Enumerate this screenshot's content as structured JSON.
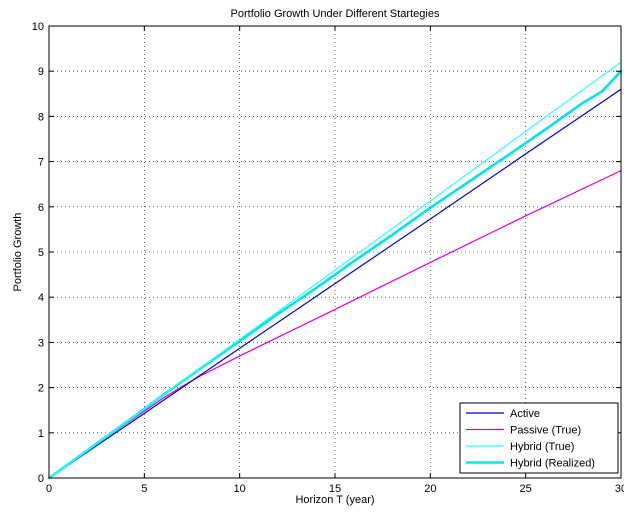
{
  "chart_data": {
    "type": "line",
    "title": "Portfolio Growth Under Different Startegies",
    "xlabel": "Horizon T (year)",
    "ylabel": "Portfolio Growth",
    "xlim": [
      0,
      30
    ],
    "ylim": [
      0,
      10
    ],
    "xticks": [
      0,
      5,
      10,
      15,
      20,
      25,
      30
    ],
    "yticks": [
      0,
      1,
      2,
      3,
      4,
      5,
      6,
      7,
      8,
      9,
      10
    ],
    "grid": true,
    "legend_position": "bottom-right",
    "series": [
      {
        "name": "Active",
        "color": "#0000cc",
        "x": [
          0,
          5,
          10,
          15,
          20,
          25,
          30
        ],
        "y": [
          0,
          1.43,
          2.87,
          4.3,
          5.73,
          7.17,
          8.6
        ]
      },
      {
        "name": "Passive (True)",
        "color": "#dd00dd",
        "x": [
          0,
          2,
          4,
          6,
          7,
          8,
          10,
          15,
          20,
          25,
          30
        ],
        "y": [
          0,
          0.6,
          1.19,
          1.77,
          2.03,
          2.27,
          2.7,
          3.73,
          4.77,
          5.8,
          6.8
        ]
      },
      {
        "name": "Hybrid (True)",
        "color": "#33ffff",
        "x": [
          0,
          5,
          10,
          15,
          20,
          25,
          30
        ],
        "y": [
          0,
          1.53,
          3.07,
          4.6,
          6.13,
          7.67,
          9.2
        ]
      },
      {
        "name": "Hybrid (Realized)",
        "color": "#00e5e5",
        "x": [
          0,
          2,
          4,
          6,
          8,
          10,
          12,
          14,
          16,
          18,
          20,
          22,
          24,
          26,
          28,
          29,
          30
        ],
        "y": [
          0,
          0.61,
          1.22,
          1.84,
          2.44,
          3.03,
          3.63,
          4.2,
          4.8,
          5.38,
          5.98,
          6.55,
          7.12,
          7.7,
          8.3,
          8.55,
          9.0
        ]
      }
    ]
  }
}
